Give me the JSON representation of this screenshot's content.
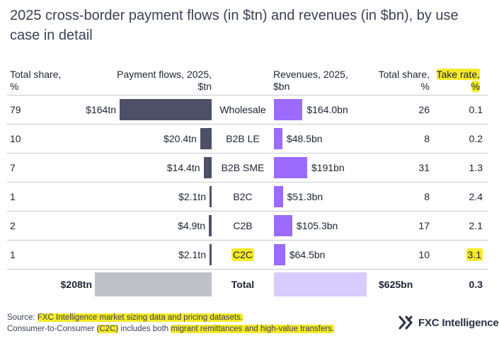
{
  "title": "2025 cross-border payment flows (in $tn) and revenues (in $bn), by use case in detail",
  "headers": {
    "total_share_left": "Total share,",
    "total_share_left_unit": "%",
    "payment_flows": "Payment flows, 2025,",
    "payment_flows_unit": "$tn",
    "revenues": "Revenues, 2025,",
    "revenues_unit": "$bn",
    "total_share_right": "Total share,",
    "total_share_right_unit": "%",
    "take_rate": "Take rate,",
    "take_rate_unit": "%"
  },
  "colors": {
    "flow_bar": "#4e5067",
    "revenue_bar": "#9b6bfb",
    "total_flow_bar": "#c0c1c8",
    "total_revenue_bar": "#d7cbfd",
    "highlight": "#f4ea2b"
  },
  "chart_data": {
    "type": "bar",
    "title": "2025 cross-border payment flows (in $tn) and revenues (in $bn), by use case in detail",
    "categories": [
      "Wholesale",
      "B2B LE",
      "B2B SME",
      "B2C",
      "C2B",
      "C2C"
    ],
    "series": [
      {
        "name": "Payment flows, 2025, $tn",
        "values": [
          164,
          20.4,
          14.4,
          2.1,
          4.9,
          2.1
        ],
        "labels": [
          "$164tn",
          "$20.4tn",
          "$14.4tn",
          "$2.1tn",
          "$4.9tn",
          "$2.1tn"
        ]
      },
      {
        "name": "Revenues, 2025, $bn",
        "values": [
          164.0,
          48.5,
          191,
          51.3,
          105.3,
          64.5
        ],
        "labels": [
          "$164.0bn",
          "$48.5bn",
          "$191bn",
          "$51.3bn",
          "$105.3bn",
          "$64.5bn"
        ]
      }
    ],
    "flow_share": [
      "79",
      "10",
      "7",
      "1",
      "2",
      "1"
    ],
    "revenue_share": [
      "26",
      "8",
      "31",
      "8",
      "17",
      "10"
    ],
    "take_rate": [
      "0.1",
      "0.2",
      "1.3",
      "2.4",
      "2.1",
      "3.1"
    ],
    "highlighted": [
      "C2C",
      "3.1",
      "Take rate,"
    ],
    "total": {
      "label": "Total",
      "flows_value": 208,
      "flows_label": "$208tn",
      "revenues_value": 625,
      "revenues_label": "$625bn",
      "take_rate": "0.3"
    }
  },
  "footer": {
    "source_prefix": "Source: ",
    "source_text": "FXC Intelligence market sizing data and pricing datasets.",
    "note_prefix": "Consumer-to-Consumer ",
    "note_c2c": "(C2C)",
    "note_mid": " includes both ",
    "note_hl": "migrant remittances and high-value transfers."
  },
  "logo": {
    "text": "FXC Intelligence",
    "icon": "fxc-logo-icon"
  }
}
